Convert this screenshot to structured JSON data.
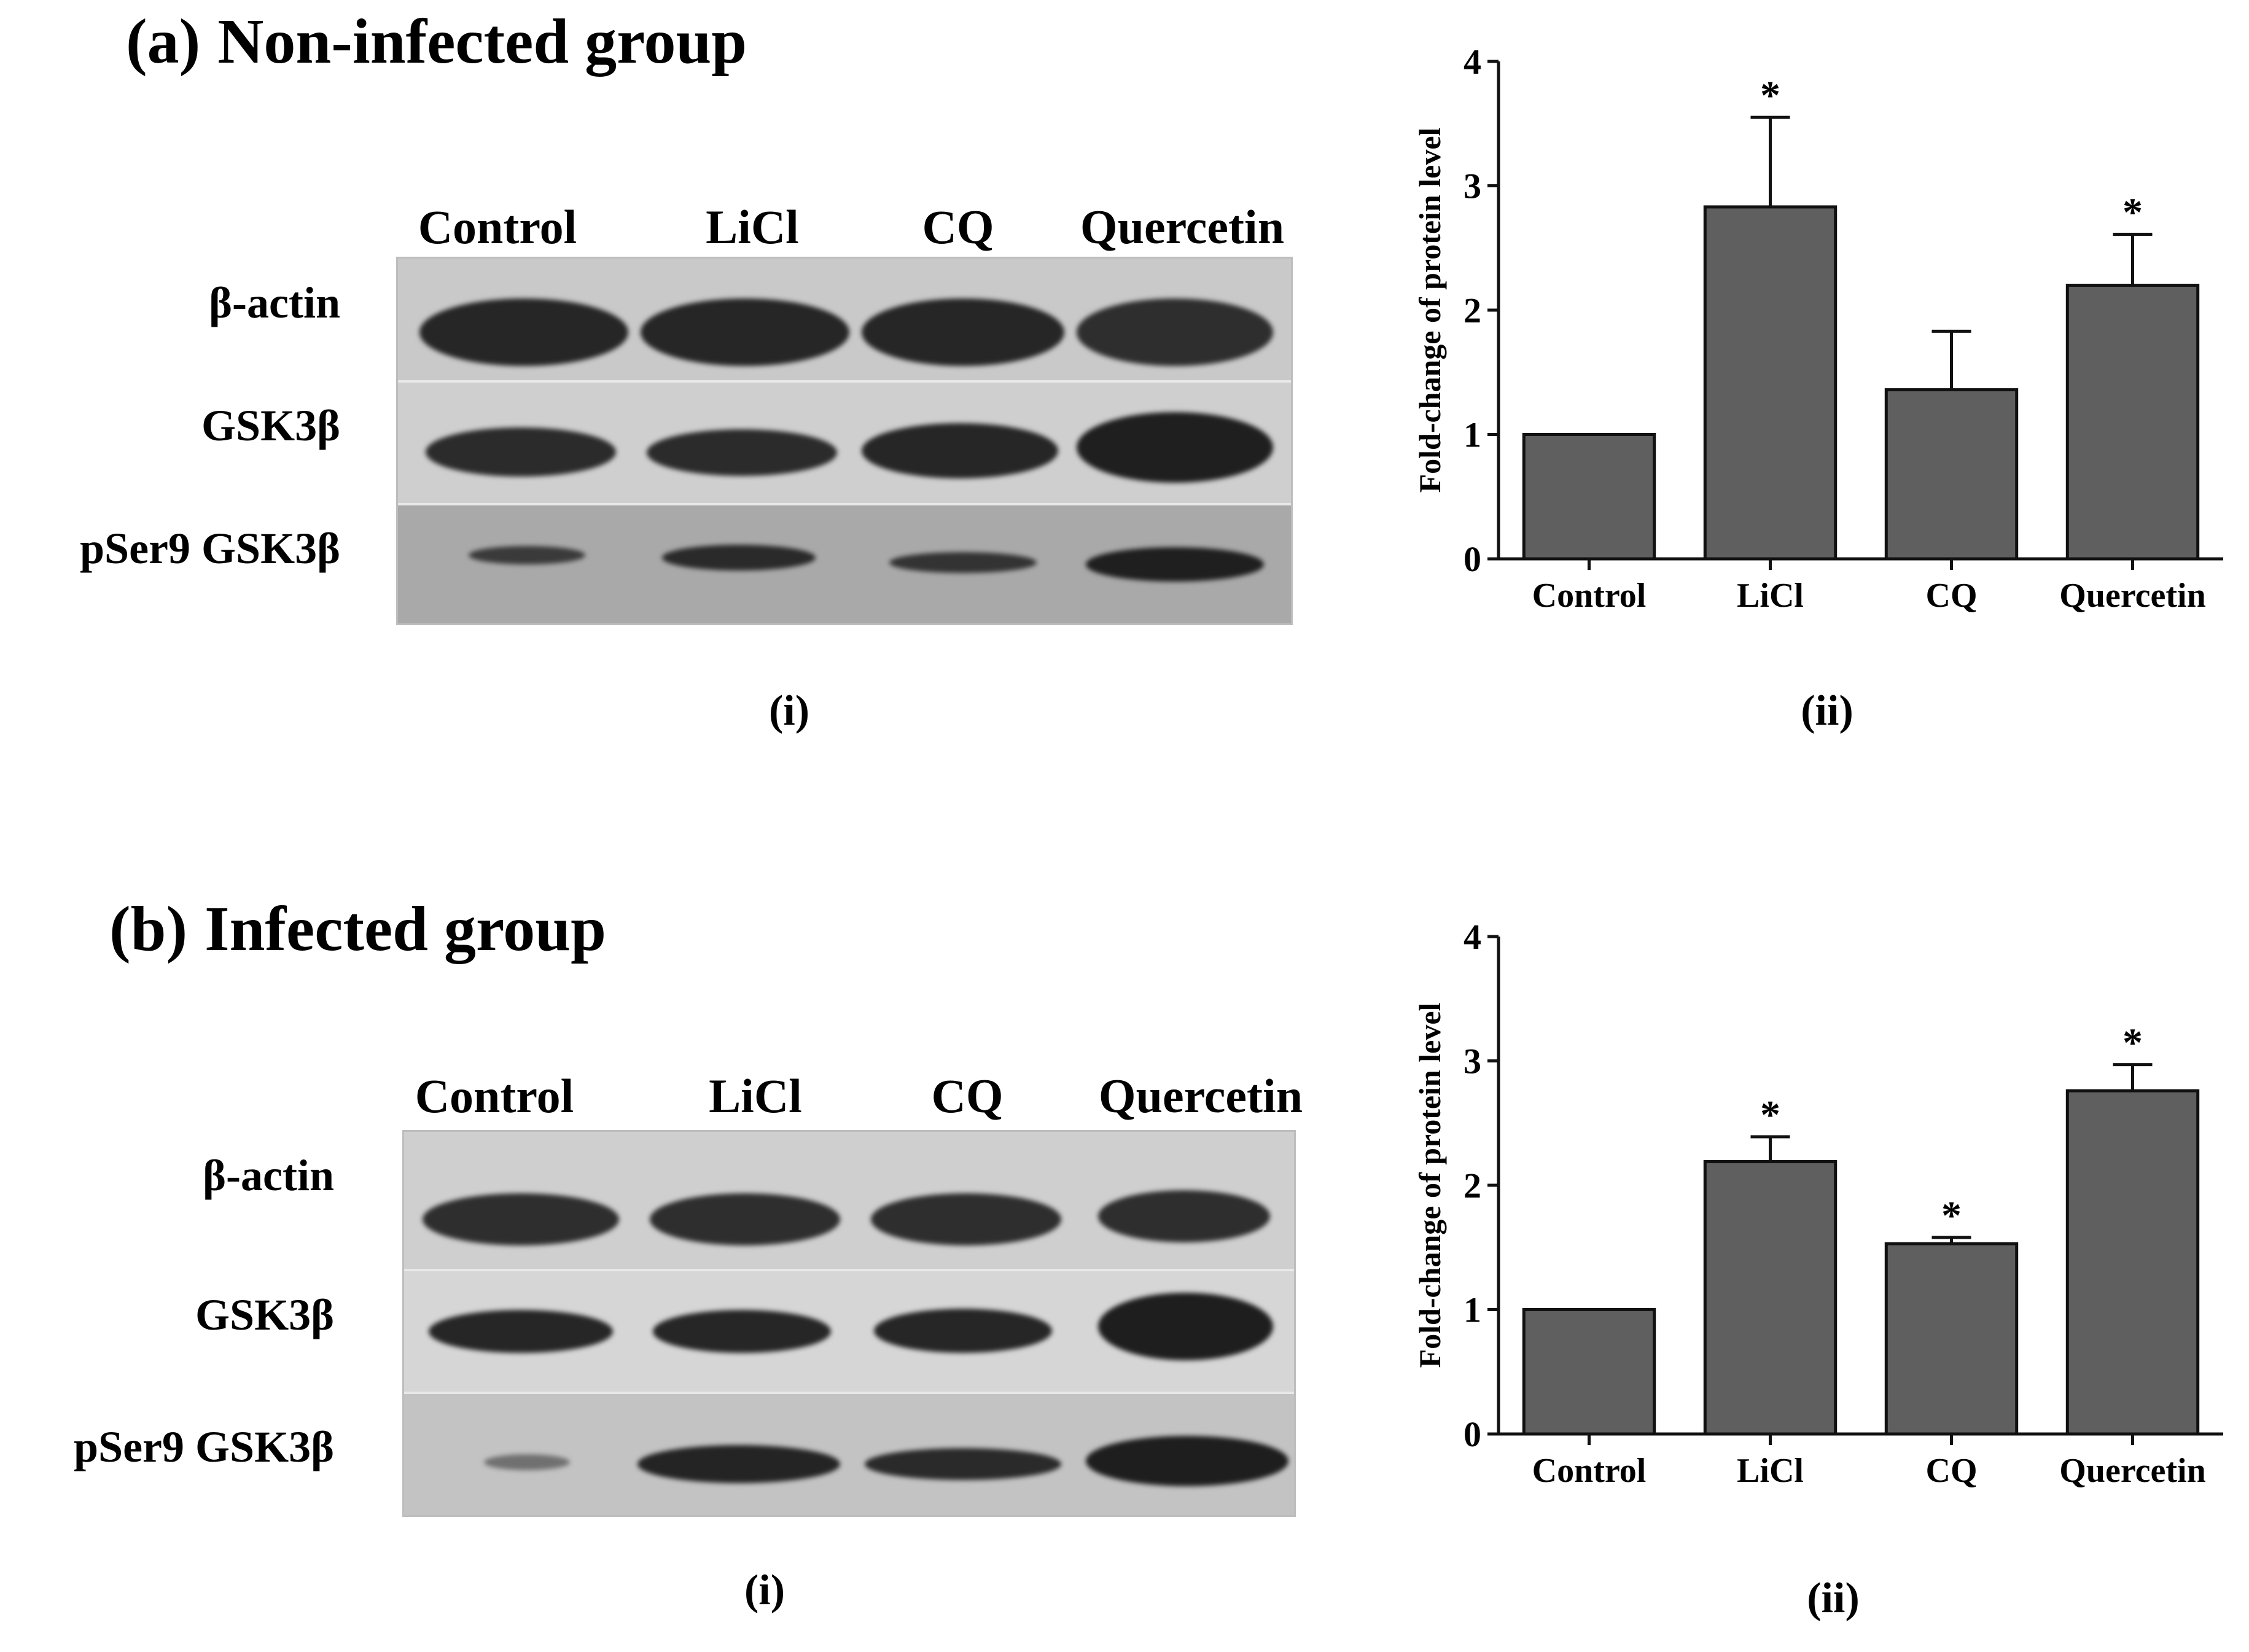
{
  "panels": [
    {
      "id": "a",
      "letter": "(a)",
      "title": "Non-infected group",
      "blot": {
        "lanes": [
          "Control",
          "LiCl",
          "CQ",
          "Quercetin"
        ],
        "rows": [
          "β-actin",
          "GSK3β",
          "pSer9 GSK3β"
        ],
        "caption": "(i)"
      },
      "chart_caption": "(ii)"
    },
    {
      "id": "b",
      "letter": "(b)",
      "title": "Infected group",
      "blot": {
        "lanes": [
          "Control",
          "LiCl",
          "CQ",
          "Quercetin"
        ],
        "rows": [
          "β-actin",
          "GSK3β",
          "pSer9 GSK3β"
        ],
        "caption": "(i)"
      },
      "chart_caption": "(ii)"
    }
  ],
  "chart_data": [
    {
      "type": "bar",
      "panel": "a",
      "categories": [
        "Control",
        "LiCl",
        "CQ",
        "Quercetin"
      ],
      "values": [
        1.0,
        2.83,
        1.36,
        2.2
      ],
      "errors": [
        0.0,
        0.72,
        0.47,
        0.41
      ],
      "significance": [
        "",
        "*",
        "",
        "*"
      ],
      "xlabel": "",
      "ylabel": "Fold-change of protein level",
      "ylim": [
        0,
        4
      ],
      "yticks": [
        0,
        1,
        2,
        3,
        4
      ],
      "bar_color": "#5f5f5f"
    },
    {
      "type": "bar",
      "panel": "b",
      "categories": [
        "Control",
        "LiCl",
        "CQ",
        "Quercetin"
      ],
      "values": [
        1.0,
        2.19,
        1.53,
        2.76
      ],
      "errors": [
        0.0,
        0.2,
        0.05,
        0.21
      ],
      "significance": [
        "",
        "*",
        "*",
        "*"
      ],
      "xlabel": "",
      "ylabel": "Fold-change of protein level",
      "ylim": [
        0,
        4
      ],
      "yticks": [
        0,
        1,
        2,
        3,
        4
      ],
      "bar_color": "#5f5f5f"
    }
  ]
}
